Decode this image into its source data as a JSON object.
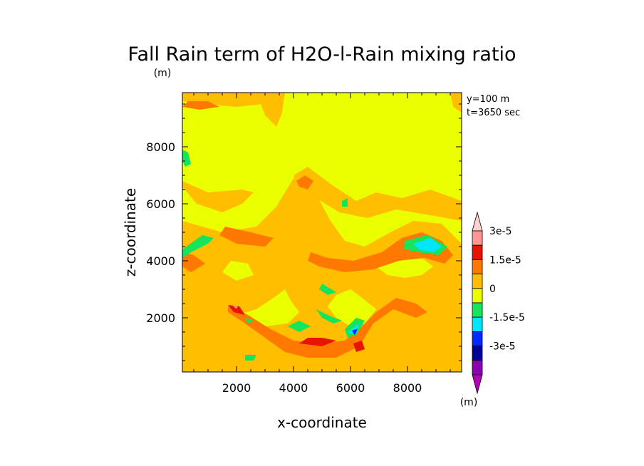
{
  "chart_data": {
    "type": "heatmap",
    "title": "Fall Rain term of H2O-l-Rain mixing ratio",
    "title_unit": "(m)",
    "xlabel": "x-coordinate",
    "ylabel": "z-coordinate",
    "annotations": [
      "y=100 m",
      "t=3650 sec"
    ],
    "xlim": [
      100,
      9900
    ],
    "ylim": [
      100,
      9900
    ],
    "x_ticks": [
      2000,
      4000,
      6000,
      8000
    ],
    "y_ticks": [
      2000,
      4000,
      6000,
      8000
    ],
    "x_tick_labels": [
      "2000",
      "4000",
      "6000",
      "8000"
    ],
    "y_tick_labels": [
      "2000",
      "4000",
      "6000",
      "8000"
    ],
    "background_level_color": "#eaff00",
    "regions": [
      {
        "color": "#ffbe00",
        "points": [
          [
            100,
            100
          ],
          [
            9900,
            100
          ],
          [
            9900,
            4600
          ],
          [
            9200,
            5300
          ],
          [
            8200,
            5400
          ],
          [
            7400,
            5000
          ],
          [
            6500,
            4500
          ],
          [
            5800,
            4700
          ],
          [
            5300,
            5400
          ],
          [
            4600,
            6700
          ],
          [
            4000,
            6900
          ],
          [
            3400,
            5900
          ],
          [
            2700,
            5200
          ],
          [
            1500,
            5000
          ],
          [
            100,
            5400
          ]
        ]
      },
      {
        "color": "#ffbe00",
        "points": [
          [
            100,
            6600
          ],
          [
            600,
            6000
          ],
          [
            1500,
            5700
          ],
          [
            2200,
            6000
          ],
          [
            2600,
            6400
          ],
          [
            2200,
            6500
          ],
          [
            1000,
            6400
          ],
          [
            100,
            6800
          ]
        ]
      },
      {
        "color": "#ffbe00",
        "points": [
          [
            100,
            9900
          ],
          [
            3300,
            9900
          ],
          [
            3000,
            9500
          ],
          [
            2000,
            9400
          ],
          [
            900,
            9500
          ],
          [
            100,
            9600
          ]
        ]
      },
      {
        "color": "#ffbe00",
        "points": [
          [
            2700,
            9900
          ],
          [
            3700,
            9900
          ],
          [
            3600,
            9200
          ],
          [
            3400,
            8700
          ],
          [
            3000,
            9100
          ]
        ]
      },
      {
        "color": "#ffbe00",
        "points": [
          [
            9500,
            9900
          ],
          [
            9900,
            9900
          ],
          [
            9900,
            9200
          ],
          [
            9600,
            9400
          ]
        ]
      },
      {
        "color": "#ffbe00",
        "points": [
          [
            4000,
            7000
          ],
          [
            4500,
            7300
          ],
          [
            5300,
            6700
          ],
          [
            6200,
            6100
          ],
          [
            6900,
            6400
          ],
          [
            7800,
            6200
          ],
          [
            8800,
            6500
          ],
          [
            9900,
            6100
          ],
          [
            9900,
            5400
          ],
          [
            8800,
            5600
          ],
          [
            7600,
            5800
          ],
          [
            6600,
            5500
          ],
          [
            5600,
            5700
          ],
          [
            4800,
            6200
          ],
          [
            4200,
            6400
          ]
        ]
      },
      {
        "color": "#eaff00",
        "points": [
          [
            2000,
            2100
          ],
          [
            2700,
            2300
          ],
          [
            3300,
            2700
          ],
          [
            3700,
            3000
          ],
          [
            3900,
            2600
          ],
          [
            4200,
            2200
          ],
          [
            3800,
            1800
          ],
          [
            3000,
            1700
          ],
          [
            2300,
            1800
          ]
        ]
      },
      {
        "color": "#eaff00",
        "points": [
          [
            5200,
            2400
          ],
          [
            5500,
            2800
          ],
          [
            6000,
            3000
          ],
          [
            6400,
            2700
          ],
          [
            6900,
            2300
          ],
          [
            6500,
            1800
          ],
          [
            6000,
            1700
          ],
          [
            5500,
            2000
          ]
        ]
      },
      {
        "color": "#eaff00",
        "points": [
          [
            6900,
            3800
          ],
          [
            7300,
            3500
          ],
          [
            7900,
            3400
          ],
          [
            8500,
            3500
          ],
          [
            8900,
            3800
          ],
          [
            8500,
            4100
          ],
          [
            7700,
            4200
          ],
          [
            7100,
            4100
          ]
        ]
      },
      {
        "color": "#eaff00",
        "points": [
          [
            1500,
            3600
          ],
          [
            2000,
            3300
          ],
          [
            2600,
            3500
          ],
          [
            2400,
            3900
          ],
          [
            1800,
            4000
          ]
        ]
      },
      {
        "color": "#ff7800",
        "points": [
          [
            1700,
            2400
          ],
          [
            2400,
            2100
          ],
          [
            3200,
            1600
          ],
          [
            4000,
            1200
          ],
          [
            5000,
            1100
          ],
          [
            5800,
            1200
          ],
          [
            6300,
            1600
          ],
          [
            6900,
            2200
          ],
          [
            7600,
            2700
          ],
          [
            8300,
            2500
          ],
          [
            8700,
            2200
          ],
          [
            8300,
            2000
          ],
          [
            7500,
            2300
          ],
          [
            6800,
            1800
          ],
          [
            6300,
            1000
          ],
          [
            5500,
            600
          ],
          [
            4500,
            600
          ],
          [
            3700,
            800
          ],
          [
            3000,
            1300
          ],
          [
            2300,
            1800
          ],
          [
            1700,
            2200
          ]
        ]
      },
      {
        "color": "#ff7800",
        "points": [
          [
            4600,
            4300
          ],
          [
            5200,
            4100
          ],
          [
            6100,
            4000
          ],
          [
            7100,
            4300
          ],
          [
            7800,
            4800
          ],
          [
            8500,
            5000
          ],
          [
            9200,
            4700
          ],
          [
            9600,
            4200
          ],
          [
            9300,
            3900
          ],
          [
            8600,
            4100
          ],
          [
            7700,
            4000
          ],
          [
            6800,
            3700
          ],
          [
            5800,
            3600
          ],
          [
            4900,
            3800
          ],
          [
            4500,
            4000
          ]
        ]
      },
      {
        "color": "#ff7800",
        "points": [
          [
            4100,
            6800
          ],
          [
            4400,
            7000
          ],
          [
            4700,
            6800
          ],
          [
            4500,
            6500
          ],
          [
            4200,
            6600
          ]
        ]
      },
      {
        "color": "#ff7800",
        "points": [
          [
            1600,
            5200
          ],
          [
            2500,
            5000
          ],
          [
            3300,
            4800
          ],
          [
            3000,
            4500
          ],
          [
            2000,
            4600
          ],
          [
            1400,
            4900
          ]
        ]
      },
      {
        "color": "#ff7800",
        "points": [
          [
            100,
            3800
          ],
          [
            400,
            3600
          ],
          [
            900,
            3900
          ],
          [
            500,
            4200
          ],
          [
            100,
            4300
          ]
        ]
      },
      {
        "color": "#ff7800",
        "points": [
          [
            100,
            9400
          ],
          [
            700,
            9300
          ],
          [
            1400,
            9400
          ],
          [
            1000,
            9600
          ],
          [
            300,
            9600
          ]
        ]
      },
      {
        "color": "#e61400",
        "points": [
          [
            4200,
            1100
          ],
          [
            5000,
            1000
          ],
          [
            5500,
            1200
          ],
          [
            5000,
            1300
          ],
          [
            4500,
            1300
          ]
        ]
      },
      {
        "color": "#e61400",
        "points": [
          [
            6200,
            800
          ],
          [
            6500,
            900
          ],
          [
            6400,
            1200
          ],
          [
            6100,
            1100
          ]
        ]
      },
      {
        "color": "#e61400",
        "points": [
          [
            1700,
            2450
          ],
          [
            2100,
            2400
          ],
          [
            2300,
            2100
          ],
          [
            1900,
            2200
          ]
        ]
      },
      {
        "color": "#ff9696",
        "points": [
          [
            1850,
            2420
          ],
          [
            2050,
            2400
          ],
          [
            2000,
            2320
          ]
        ]
      },
      {
        "color": "#16e45a",
        "points": [
          [
            100,
            7900
          ],
          [
            300,
            7800
          ],
          [
            400,
            7400
          ],
          [
            200,
            7300
          ],
          [
            100,
            7500
          ]
        ]
      },
      {
        "color": "#16e45a",
        "points": [
          [
            100,
            4400
          ],
          [
            800,
            4900
          ],
          [
            1200,
            4800
          ],
          [
            1000,
            4600
          ],
          [
            400,
            4300
          ],
          [
            100,
            4100
          ]
        ]
      },
      {
        "color": "#16e45a",
        "points": [
          [
            7900,
            4700
          ],
          [
            8700,
            4900
          ],
          [
            9400,
            4500
          ],
          [
            9100,
            4200
          ],
          [
            8400,
            4300
          ],
          [
            7900,
            4400
          ]
        ]
      },
      {
        "color": "#16e45a",
        "points": [
          [
            5800,
            1600
          ],
          [
            6200,
            2000
          ],
          [
            6500,
            1900
          ],
          [
            6200,
            1400
          ],
          [
            5900,
            1300
          ]
        ]
      },
      {
        "color": "#16e45a",
        "points": [
          [
            4800,
            2300
          ],
          [
            5200,
            2100
          ],
          [
            5700,
            1900
          ],
          [
            5400,
            1800
          ],
          [
            5000,
            2000
          ]
        ]
      },
      {
        "color": "#16e45a",
        "points": [
          [
            5000,
            3200
          ],
          [
            5500,
            2900
          ],
          [
            5200,
            2800
          ],
          [
            4900,
            3000
          ]
        ]
      },
      {
        "color": "#16e45a",
        "points": [
          [
            3800,
            1700
          ],
          [
            4200,
            1500
          ],
          [
            4600,
            1700
          ],
          [
            4200,
            1900
          ]
        ]
      },
      {
        "color": "#16e45a",
        "points": [
          [
            5700,
            6100
          ],
          [
            5900,
            6200
          ],
          [
            5900,
            5900
          ],
          [
            5700,
            5900
          ]
        ]
      },
      {
        "color": "#16e45a",
        "points": [
          [
            2300,
            700
          ],
          [
            2700,
            700
          ],
          [
            2600,
            500
          ],
          [
            2300,
            500
          ]
        ]
      },
      {
        "color": "#16e45a",
        "points": [
          [
            2300,
            2000
          ],
          [
            2600,
            1900
          ],
          [
            2400,
            1800
          ]
        ]
      },
      {
        "color": "#00e6ff",
        "points": [
          [
            8200,
            4600
          ],
          [
            8800,
            4800
          ],
          [
            9200,
            4500
          ],
          [
            8900,
            4300
          ],
          [
            8400,
            4400
          ]
        ]
      },
      {
        "color": "#00e6ff",
        "points": [
          [
            5900,
            1500
          ],
          [
            6300,
            1800
          ],
          [
            6200,
            1400
          ]
        ]
      },
      {
        "color": "#0028ff",
        "points": [
          [
            6050,
            1550
          ],
          [
            6250,
            1620
          ],
          [
            6150,
            1380
          ]
        ]
      }
    ],
    "colorbar": {
      "levels": [
        "3e-5",
        "1.5e-5",
        "0",
        "-1.5e-5",
        "-3e-5"
      ],
      "colors": [
        "#ffd2d2",
        "#ff9696",
        "#e61400",
        "#ff7800",
        "#ffbe00",
        "#eaff00",
        "#16e45a",
        "#00e6ff",
        "#0028ff",
        "#000096",
        "#8c00b4",
        "#b400b4"
      ],
      "unit": "(m)"
    }
  }
}
